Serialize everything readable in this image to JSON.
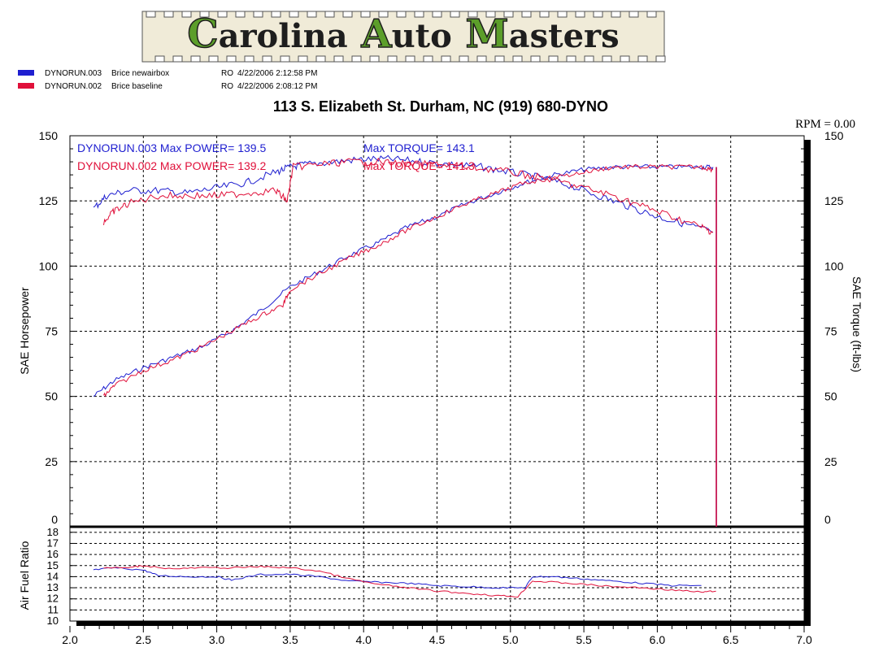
{
  "logo": {
    "text": "Carolina Auto Masters",
    "bg": "#f0ebd8",
    "cap_color": "#5c9e2a"
  },
  "header": {
    "address": "113 S. Elizabeth St.  Durham, NC  (919) 680-DYNO",
    "rpm_readout": "RPM = 0.00"
  },
  "legend": [
    {
      "file": "DYNORUN.003",
      "desc": "Brice newairbox",
      "op": "RO",
      "date": "4/22/2006 2:12:58 PM",
      "color": "#1f1fd0"
    },
    {
      "file": "DYNORUN.002",
      "desc": "Brice baseline",
      "op": "RO",
      "date": "4/22/2006 2:08:12 PM",
      "color": "#e0103a"
    }
  ],
  "annotations": {
    "run003": "DYNORUN.003  Max POWER= 139.5",
    "run003_torque": "Max TORQUE= 143.1",
    "run002": "DYNORUN.002  Max POWER= 139.2",
    "run002_torque": "Max TORQUE= 141.3"
  },
  "chart_data": {
    "type": "line",
    "xlim": [
      2.0,
      7.0
    ],
    "x_ticks": [
      "2.0",
      "2.5",
      "3.0",
      "3.5",
      "4.0",
      "4.5",
      "5.0",
      "5.5",
      "6.0",
      "6.5",
      "7.0"
    ],
    "main": {
      "ylabel": "SAE Horsepower",
      "y2label": "SAE Torque (ft-lbs)",
      "ylim": [
        0,
        150
      ],
      "y_ticks": [
        "0",
        "25",
        "50",
        "75",
        "100",
        "125",
        "150"
      ],
      "grid": true
    },
    "afr": {
      "ylabel": "Air Fuel Ratio",
      "ylim": [
        10,
        18.5
      ],
      "y_ticks": [
        "10",
        "11",
        "12",
        "13",
        "14",
        "15",
        "16",
        "17",
        "18"
      ]
    },
    "series": [
      {
        "name": "DYNORUN.003",
        "color": "#1f1fd0",
        "power": {
          "x": [
            2.16,
            2.3,
            2.5,
            2.7,
            2.9,
            3.1,
            3.3,
            3.5,
            3.7,
            3.9,
            4.1,
            4.3,
            4.5,
            4.7,
            4.9,
            5.1,
            5.3,
            5.5,
            5.7,
            5.9,
            6.1,
            6.3,
            6.38
          ],
          "y": [
            50,
            56,
            61,
            65,
            69,
            75,
            83,
            92,
            98,
            104,
            109,
            115,
            119,
            124,
            128,
            132,
            135,
            137,
            138,
            138,
            138,
            138,
            138
          ]
        },
        "torque": {
          "x": [
            2.16,
            2.25,
            2.4,
            2.6,
            2.8,
            3.0,
            3.2,
            3.4,
            3.5,
            3.6,
            3.8,
            4.0,
            4.2,
            4.4,
            4.6,
            4.8,
            5.0,
            5.2,
            5.4,
            5.6,
            5.8,
            6.0,
            6.2,
            6.38
          ],
          "y": [
            122,
            127,
            129,
            129,
            128,
            130,
            132,
            136,
            138,
            139,
            140,
            141,
            141,
            140,
            139,
            138,
            136,
            134,
            131,
            127,
            123,
            119,
            116,
            113
          ]
        },
        "afr": {
          "x": [
            2.16,
            2.3,
            2.5,
            2.6,
            2.8,
            3.0,
            3.1,
            3.3,
            3.5,
            3.7,
            3.9,
            4.1,
            4.3,
            4.5,
            4.7,
            4.9,
            5.1,
            5.15,
            5.3,
            5.5,
            5.7,
            5.9,
            6.1,
            6.3
          ],
          "y": [
            14.6,
            14.8,
            14.6,
            14.1,
            14.0,
            14.0,
            13.7,
            14.2,
            14.2,
            14.0,
            13.6,
            13.5,
            13.4,
            13.2,
            13.1,
            13.0,
            13.0,
            14.0,
            14.0,
            13.8,
            13.6,
            13.4,
            13.2,
            13.2
          ]
        }
      },
      {
        "name": "DYNORUN.002",
        "color": "#e0103a",
        "power": {
          "x": [
            2.23,
            2.3,
            2.5,
            2.7,
            2.9,
            3.1,
            3.3,
            3.45,
            3.5,
            3.7,
            3.9,
            4.1,
            4.3,
            4.5,
            4.7,
            4.9,
            5.1,
            5.3,
            5.5,
            5.7,
            5.9,
            6.1,
            6.3,
            6.38
          ],
          "y": [
            50,
            54,
            60,
            64,
            69,
            75,
            81,
            85,
            91,
            97,
            103,
            108,
            114,
            119,
            124,
            128,
            132,
            134,
            136,
            138,
            138,
            138,
            138,
            137
          ]
        },
        "torque": {
          "x": [
            2.23,
            2.3,
            2.4,
            2.6,
            2.8,
            3.0,
            3.2,
            3.4,
            3.48,
            3.52,
            3.7,
            3.9,
            4.1,
            4.3,
            4.5,
            4.7,
            4.9,
            5.1,
            5.3,
            5.5,
            5.7,
            5.9,
            6.1,
            6.3,
            6.38
          ],
          "y": [
            117,
            121,
            124,
            127,
            127,
            127,
            128,
            129,
            125,
            138,
            139,
            140,
            140,
            139,
            139,
            138,
            137,
            135,
            133,
            130,
            127,
            123,
            119,
            115,
            113
          ]
        },
        "afr": {
          "x": [
            2.23,
            2.4,
            2.5,
            2.7,
            2.9,
            3.1,
            3.3,
            3.5,
            3.7,
            3.9,
            4.1,
            4.3,
            4.5,
            4.7,
            4.9,
            5.05,
            5.15,
            5.3,
            5.5,
            5.7,
            5.9,
            6.1,
            6.3,
            6.4
          ],
          "y": [
            14.8,
            14.8,
            15.0,
            14.7,
            14.8,
            14.8,
            14.9,
            14.8,
            14.5,
            13.8,
            13.3,
            13.0,
            12.7,
            12.5,
            12.3,
            12.2,
            13.6,
            13.5,
            13.3,
            13.1,
            13.0,
            12.8,
            12.6,
            12.7
          ]
        }
      }
    ]
  }
}
